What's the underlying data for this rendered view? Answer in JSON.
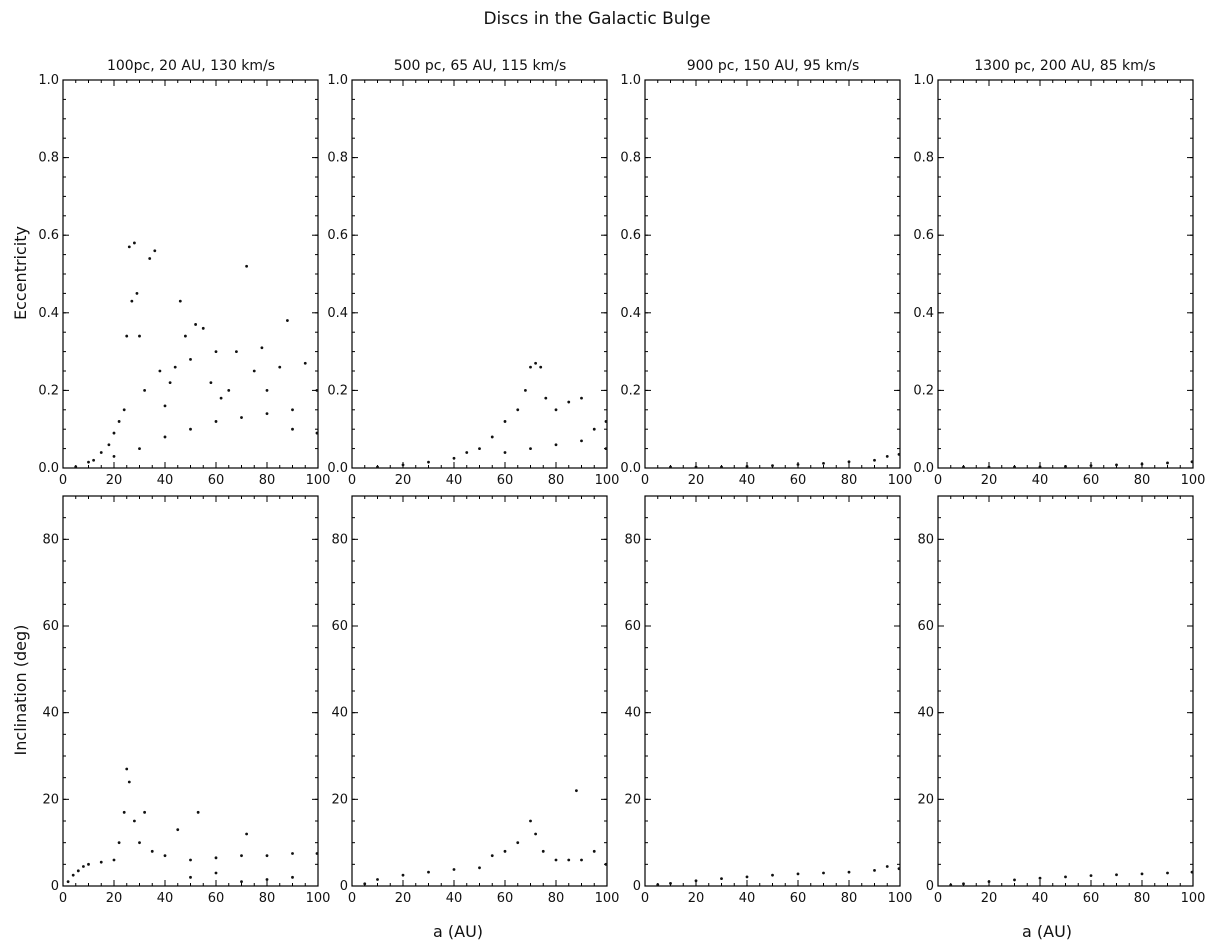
{
  "figure": {
    "title": "Discs in the Galactic Bulge",
    "rows": [
      {
        "ylabel": "Eccentricity"
      },
      {
        "ylabel": "Inclination (deg)"
      }
    ],
    "columns": [
      {
        "title": "100pc, 20 AU, 130 km/s"
      },
      {
        "title": "500 pc, 65 AU, 115 km/s"
      },
      {
        "title": "900 pc, 150 AU, 95 km/s"
      },
      {
        "title": "1300 pc, 200 AU, 85 km/s"
      }
    ],
    "xlabel": "a (AU)"
  },
  "chart_data": [
    {
      "type": "scatter",
      "panel": "ecc-1",
      "title": "100pc, 20 AU, 130 km/s",
      "xlabel": "",
      "ylabel": "Eccentricity",
      "xlim": [
        0,
        100
      ],
      "ylim": [
        0,
        1
      ],
      "xticks": [
        "0",
        "20",
        "40",
        "60",
        "80",
        "100"
      ],
      "yticks": [
        "0.0",
        "0.2",
        "0.4",
        "0.6",
        "0.8",
        "1.0"
      ],
      "series": [
        {
          "points": [
            [
              5,
              0.003
            ],
            [
              10,
              0.015
            ],
            [
              12,
              0.02
            ],
            [
              15,
              0.04
            ],
            [
              18,
              0.06
            ],
            [
              20,
              0.09
            ],
            [
              22,
              0.12
            ],
            [
              24,
              0.15
            ],
            [
              25,
              0.34
            ],
            [
              26,
              0.57
            ],
            [
              27,
              0.43
            ],
            [
              28,
              0.58
            ],
            [
              29,
              0.45
            ],
            [
              30,
              0.34
            ],
            [
              32,
              0.2
            ],
            [
              34,
              0.54
            ],
            [
              36,
              0.56
            ],
            [
              38,
              0.25
            ],
            [
              40,
              0.16
            ],
            [
              42,
              0.22
            ],
            [
              44,
              0.26
            ],
            [
              46,
              0.43
            ],
            [
              48,
              0.34
            ],
            [
              50,
              0.28
            ],
            [
              52,
              0.37
            ],
            [
              55,
              0.36
            ],
            [
              58,
              0.22
            ],
            [
              60,
              0.3
            ],
            [
              62,
              0.18
            ],
            [
              65,
              0.2
            ],
            [
              68,
              0.3
            ],
            [
              72,
              0.52
            ],
            [
              75,
              0.25
            ],
            [
              78,
              0.31
            ],
            [
              80,
              0.2
            ],
            [
              85,
              0.26
            ],
            [
              88,
              0.38
            ],
            [
              90,
              0.15
            ],
            [
              95,
              0.27
            ],
            [
              100,
              0.2
            ],
            [
              20,
              0.03
            ],
            [
              30,
              0.05
            ],
            [
              40,
              0.08
            ],
            [
              50,
              0.1
            ],
            [
              60,
              0.12
            ],
            [
              70,
              0.13
            ],
            [
              80,
              0.14
            ],
            [
              90,
              0.1
            ],
            [
              100,
              0.09
            ]
          ]
        }
      ]
    },
    {
      "type": "scatter",
      "panel": "ecc-2",
      "title": "500 pc, 65 AU, 115 km/s",
      "xlabel": "",
      "ylabel": "",
      "xlim": [
        0,
        100
      ],
      "ylim": [
        0,
        1
      ],
      "xticks": [
        "0",
        "20",
        "40",
        "60",
        "80",
        "100"
      ],
      "yticks": [
        "0.0",
        "0.2",
        "0.4",
        "0.6",
        "0.8",
        "1.0"
      ],
      "series": [
        {
          "points": [
            [
              10,
              0.002
            ],
            [
              20,
              0.008
            ],
            [
              30,
              0.015
            ],
            [
              40,
              0.025
            ],
            [
              45,
              0.04
            ],
            [
              50,
              0.05
            ],
            [
              55,
              0.08
            ],
            [
              60,
              0.12
            ],
            [
              65,
              0.15
            ],
            [
              68,
              0.2
            ],
            [
              70,
              0.26
            ],
            [
              72,
              0.27
            ],
            [
              74,
              0.26
            ],
            [
              76,
              0.18
            ],
            [
              80,
              0.15
            ],
            [
              85,
              0.17
            ],
            [
              90,
              0.18
            ],
            [
              95,
              0.1
            ],
            [
              100,
              0.12
            ],
            [
              60,
              0.04
            ],
            [
              70,
              0.05
            ],
            [
              80,
              0.06
            ],
            [
              90,
              0.07
            ],
            [
              100,
              0.05
            ]
          ]
        }
      ]
    },
    {
      "type": "scatter",
      "panel": "ecc-3",
      "title": "900 pc, 150 AU, 95 km/s",
      "xlabel": "",
      "ylabel": "",
      "xlim": [
        0,
        100
      ],
      "ylim": [
        0,
        1
      ],
      "xticks": [
        "0",
        "20",
        "40",
        "60",
        "80",
        "100"
      ],
      "yticks": [
        "0.0",
        "0.2",
        "0.4",
        "0.6",
        "0.8",
        "1.0"
      ],
      "series": [
        {
          "points": [
            [
              10,
              0.0005
            ],
            [
              20,
              0.001
            ],
            [
              30,
              0.002
            ],
            [
              40,
              0.004
            ],
            [
              50,
              0.006
            ],
            [
              60,
              0.009
            ],
            [
              70,
              0.012
            ],
            [
              80,
              0.016
            ],
            [
              90,
              0.02
            ],
            [
              95,
              0.03
            ],
            [
              100,
              0.035
            ]
          ]
        }
      ]
    },
    {
      "type": "scatter",
      "panel": "ecc-4",
      "title": "1300 pc, 200 AU, 85 km/s",
      "xlabel": "",
      "ylabel": "",
      "xlim": [
        0,
        100
      ],
      "ylim": [
        0,
        1
      ],
      "xticks": [
        "0",
        "20",
        "40",
        "60",
        "80",
        "100"
      ],
      "yticks": [
        "0.0",
        "0.2",
        "0.4",
        "0.6",
        "0.8",
        "1.0"
      ],
      "series": [
        {
          "points": [
            [
              10,
              0.0003
            ],
            [
              20,
              0.0008
            ],
            [
              30,
              0.0015
            ],
            [
              40,
              0.003
            ],
            [
              50,
              0.004
            ],
            [
              60,
              0.006
            ],
            [
              70,
              0.008
            ],
            [
              80,
              0.01
            ],
            [
              90,
              0.013
            ],
            [
              100,
              0.016
            ]
          ]
        }
      ]
    },
    {
      "type": "scatter",
      "panel": "inc-1",
      "title": "",
      "xlabel": "",
      "ylabel": "Inclination (deg)",
      "xlim": [
        0,
        100
      ],
      "ylim": [
        0,
        90
      ],
      "xticks": [
        "0",
        "20",
        "40",
        "60",
        "80",
        "100"
      ],
      "yticks": [
        "0",
        "20",
        "40",
        "60",
        "80"
      ],
      "series": [
        {
          "points": [
            [
              2,
              1
            ],
            [
              4,
              2.5
            ],
            [
              6,
              3.5
            ],
            [
              8,
              4.5
            ],
            [
              10,
              5
            ],
            [
              15,
              5.5
            ],
            [
              20,
              6
            ],
            [
              22,
              10
            ],
            [
              24,
              17
            ],
            [
              25,
              27
            ],
            [
              26,
              24
            ],
            [
              28,
              15
            ],
            [
              30,
              10
            ],
            [
              32,
              17
            ],
            [
              35,
              8
            ],
            [
              40,
              7
            ],
            [
              45,
              13
            ],
            [
              50,
              6
            ],
            [
              53,
              17
            ],
            [
              60,
              6.5
            ],
            [
              70,
              7
            ],
            [
              72,
              12
            ],
            [
              80,
              7
            ],
            [
              90,
              7.5
            ],
            [
              100,
              7.5
            ],
            [
              50,
              2
            ],
            [
              60,
              3
            ],
            [
              70,
              1
            ],
            [
              80,
              1.5
            ],
            [
              90,
              2
            ]
          ]
        }
      ]
    },
    {
      "type": "scatter",
      "panel": "inc-2",
      "title": "",
      "xlabel": "a (AU)",
      "ylabel": "",
      "xlim": [
        0,
        100
      ],
      "ylim": [
        0,
        90
      ],
      "xticks": [
        "0",
        "20",
        "40",
        "60",
        "80",
        "100"
      ],
      "yticks": [
        "0",
        "20",
        "40",
        "60",
        "80"
      ],
      "series": [
        {
          "points": [
            [
              5,
              0.5
            ],
            [
              10,
              1.5
            ],
            [
              20,
              2.5
            ],
            [
              30,
              3.2
            ],
            [
              40,
              3.8
            ],
            [
              50,
              4.2
            ],
            [
              55,
              7
            ],
            [
              60,
              8
            ],
            [
              65,
              10
            ],
            [
              70,
              15
            ],
            [
              72,
              12
            ],
            [
              75,
              8
            ],
            [
              80,
              6
            ],
            [
              85,
              6
            ],
            [
              88,
              22
            ],
            [
              90,
              6
            ],
            [
              95,
              8
            ],
            [
              100,
              5
            ]
          ]
        }
      ]
    },
    {
      "type": "scatter",
      "panel": "inc-3",
      "title": "",
      "xlabel": "",
      "ylabel": "",
      "xlim": [
        0,
        100
      ],
      "ylim": [
        0,
        90
      ],
      "xticks": [
        "0",
        "20",
        "40",
        "60",
        "80",
        "100"
      ],
      "yticks": [
        "0",
        "20",
        "40",
        "60",
        "80"
      ],
      "series": [
        {
          "points": [
            [
              5,
              0.3
            ],
            [
              10,
              0.6
            ],
            [
              20,
              1.2
            ],
            [
              30,
              1.7
            ],
            [
              40,
              2.1
            ],
            [
              50,
              2.5
            ],
            [
              60,
              2.8
            ],
            [
              70,
              3
            ],
            [
              80,
              3.2
            ],
            [
              90,
              3.6
            ],
            [
              95,
              4.5
            ],
            [
              100,
              4
            ]
          ]
        }
      ]
    },
    {
      "type": "scatter",
      "panel": "inc-4",
      "title": "",
      "xlabel": "a (AU)",
      "ylabel": "",
      "xlim": [
        0,
        100
      ],
      "ylim": [
        0,
        90
      ],
      "xticks": [
        "0",
        "20",
        "40",
        "60",
        "80",
        "100"
      ],
      "yticks": [
        "0",
        "20",
        "40",
        "60",
        "80"
      ],
      "series": [
        {
          "points": [
            [
              5,
              0.2
            ],
            [
              10,
              0.5
            ],
            [
              20,
              1
            ],
            [
              30,
              1.4
            ],
            [
              40,
              1.8
            ],
            [
              50,
              2.1
            ],
            [
              60,
              2.4
            ],
            [
              70,
              2.6
            ],
            [
              80,
              2.8
            ],
            [
              90,
              3
            ],
            [
              100,
              3.2
            ]
          ]
        }
      ]
    }
  ]
}
